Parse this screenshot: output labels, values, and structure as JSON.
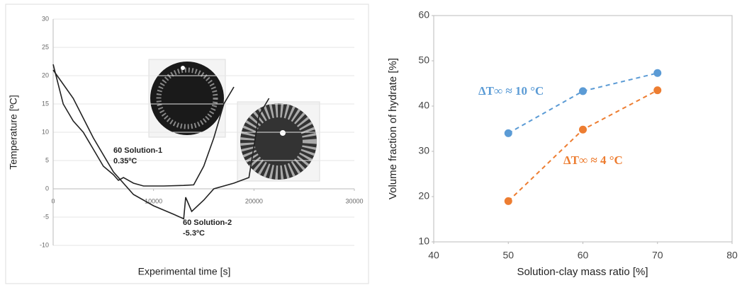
{
  "chart_data": [
    {
      "type": "line",
      "x_label": "Experimental time [s]",
      "y_label": "Temperature [ºC]",
      "xlim": [
        0,
        30000
      ],
      "xticks": [
        0,
        10000,
        20000,
        30000
      ],
      "ylim": [
        -10,
        30
      ],
      "yticks": [
        -10,
        -5,
        0,
        5,
        10,
        15,
        20,
        25,
        30
      ],
      "annotations": [
        "60 Solution-1",
        "0.35ºC",
        "60 Solution-2",
        "-5.3ºC"
      ],
      "series": [
        {
          "color": "#222222",
          "x": [
            0,
            1000,
            2000,
            3000,
            4000,
            5000,
            6000,
            6500,
            7000,
            8000,
            9000,
            11000,
            13000,
            14000,
            15000,
            16000,
            17000,
            18000
          ],
          "values": [
            22,
            15,
            12,
            10,
            7,
            4,
            2.5,
            1.5,
            2,
            1,
            0.5,
            0.5,
            0.6,
            0.7,
            4,
            9,
            15,
            18
          ]
        },
        {
          "color": "#222222",
          "x": [
            0,
            2000,
            4000,
            6000,
            8000,
            10000,
            12000,
            13000,
            13200,
            13800,
            15000,
            16000,
            18000,
            19500,
            20500,
            21500
          ],
          "values": [
            21,
            16,
            9,
            3,
            -1,
            -3,
            -4.5,
            -5.3,
            -1.5,
            -4,
            -2,
            0,
            1,
            2,
            13,
            16
          ]
        }
      ]
    },
    {
      "type": "line",
      "x_label": "Solution-clay mass ratio [%]",
      "y_label": "Volume fraction of hydrate [%]",
      "xlim": [
        40,
        80
      ],
      "xticks": [
        40,
        50,
        60,
        70,
        80
      ],
      "ylim": [
        10,
        60
      ],
      "yticks": [
        10,
        20,
        30,
        40,
        50,
        60
      ],
      "series": [
        {
          "name": "ΔT∞ ≈ 10 °C",
          "color": "#5b9bd5",
          "x": [
            50,
            60,
            70
          ],
          "values": [
            34,
            43.3,
            47.3
          ]
        },
        {
          "name": "ΔT∞ ≈ 4 °C",
          "color": "#ed7d31",
          "x": [
            50,
            60,
            70
          ],
          "values": [
            19,
            34.8,
            43.5
          ]
        }
      ]
    }
  ]
}
